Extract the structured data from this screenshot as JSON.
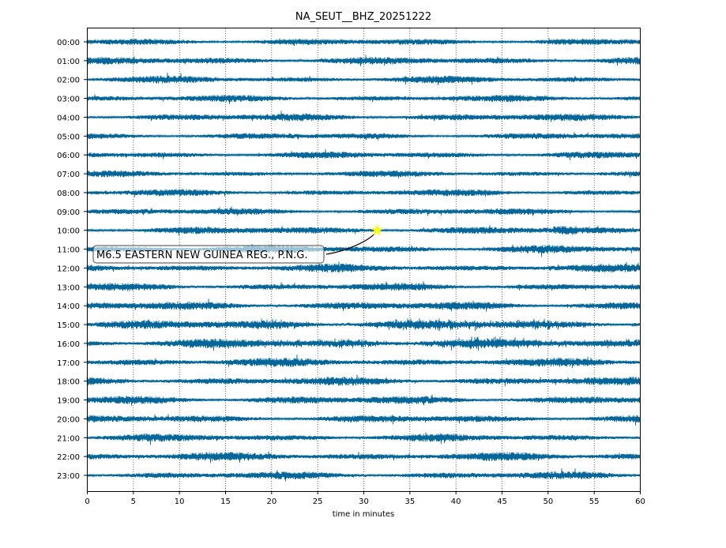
{
  "chart_data": {
    "type": "line",
    "title": "NA_SEUT__BHZ_20251222",
    "xlabel": "time in minutes",
    "ylabel": "",
    "xlim": [
      0,
      60
    ],
    "xticks": [
      "0",
      "5",
      "10",
      "15",
      "20",
      "25",
      "30",
      "35",
      "40",
      "45",
      "50",
      "55",
      "60"
    ],
    "yticks": [
      "00:00",
      "01:00",
      "02:00",
      "03:00",
      "04:00",
      "05:00",
      "06:00",
      "07:00",
      "08:00",
      "09:00",
      "10:00",
      "11:00",
      "12:00",
      "13:00",
      "14:00",
      "15:00",
      "16:00",
      "17:00",
      "18:00",
      "19:00",
      "20:00",
      "21:00",
      "22:00",
      "23:00"
    ],
    "grid": "vertical dotted",
    "trace_color": "#006699",
    "relative_amplitude": [
      0.8,
      0.9,
      0.85,
      0.8,
      0.9,
      0.75,
      0.8,
      0.75,
      0.8,
      0.8,
      0.9,
      0.95,
      0.95,
      0.9,
      1.0,
      1.1,
      1.1,
      1.0,
      1.0,
      1.0,
      0.9,
      0.9,
      1.0,
      0.9
    ],
    "event": {
      "label": "M6.5 EASTERN NEW GUINEA REG., P.N.G.",
      "hour": "10:00",
      "minute": 31.5,
      "marker_color": "#ffff00"
    }
  }
}
